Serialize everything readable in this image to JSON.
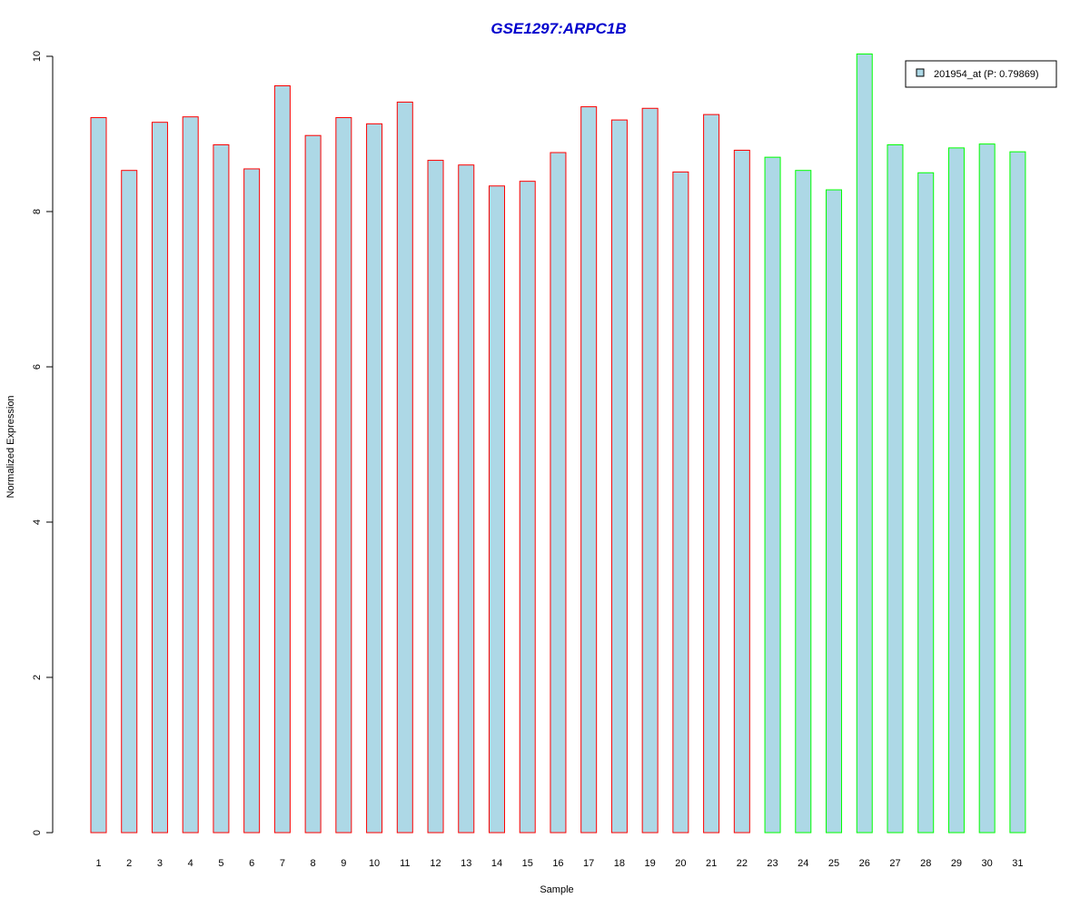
{
  "chart_data": {
    "type": "bar",
    "title": "GSE1297:ARPC1B",
    "xlabel": "Sample",
    "ylabel": "Normalized Expression",
    "ylim": [
      0,
      10
    ],
    "yticks": [
      "0",
      "2",
      "4",
      "6",
      "8",
      "10"
    ],
    "categories": [
      "1",
      "2",
      "3",
      "4",
      "5",
      "6",
      "7",
      "8",
      "9",
      "10",
      "11",
      "12",
      "13",
      "14",
      "15",
      "16",
      "17",
      "18",
      "19",
      "20",
      "21",
      "22",
      "23",
      "24",
      "25",
      "26",
      "27",
      "28",
      "29",
      "30",
      "31"
    ],
    "values": [
      9.21,
      8.53,
      9.15,
      9.22,
      8.86,
      8.55,
      9.62,
      8.98,
      9.21,
      9.13,
      9.41,
      8.66,
      8.6,
      8.33,
      8.39,
      8.76,
      9.35,
      9.18,
      9.33,
      8.51,
      9.25,
      8.79,
      8.7,
      8.53,
      8.28,
      10.03,
      8.86,
      8.5,
      8.82,
      8.87,
      8.77
    ],
    "groups": [
      "red",
      "red",
      "red",
      "red",
      "red",
      "red",
      "red",
      "red",
      "red",
      "red",
      "red",
      "red",
      "red",
      "red",
      "red",
      "red",
      "red",
      "red",
      "red",
      "red",
      "red",
      "red",
      "green",
      "green",
      "green",
      "green",
      "green",
      "green",
      "green",
      "green",
      "green"
    ],
    "legend": {
      "label": "201954_at (P: 0.79869)",
      "position": "top-right"
    },
    "grid": false,
    "colors": {
      "bar_fill": "#add8e6",
      "red": "#ff0000",
      "green": "#00ff00",
      "title": "#0000cd",
      "axis": "#000000"
    }
  }
}
